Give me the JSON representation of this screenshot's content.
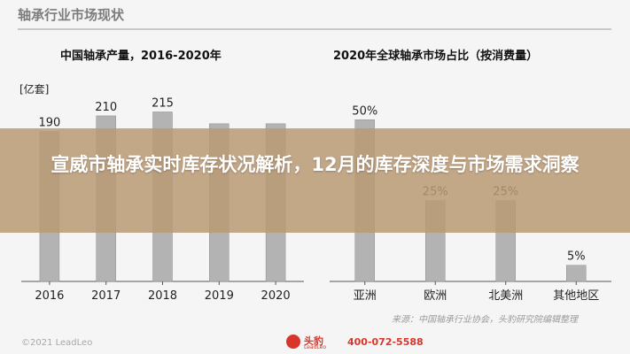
{
  "page_title": "轴承行业市场现状",
  "banner_text": "宣威市轴承实时库存状况解析，12月的库存深度与市场需求洞察",
  "source_note": "来源：中国轴承行业协会，头豹研究院编辑整理",
  "copyright": "©2021 LeadLeo",
  "logo": {
    "name": "头豹",
    "sub": "LeadLeo"
  },
  "phone": "400-072-5588",
  "colors": {
    "bar": "#b3b3b3",
    "bar_stroke": "#8f8f8f",
    "label": "#222222",
    "axis": "#555555",
    "brand": "#d9362b"
  },
  "chart_data": [
    {
      "type": "bar",
      "title": "中国轴承产量，2016-2020年",
      "unit": "[亿套]",
      "categories": [
        "2016",
        "2017",
        "2018",
        "2019",
        "2020"
      ],
      "values": [
        190,
        210,
        215,
        200,
        200
      ],
      "value_labels": [
        "190",
        "210",
        "215",
        "",
        ""
      ],
      "ylim": [
        0,
        220
      ],
      "grid": false
    },
    {
      "type": "bar",
      "title": "2020年全球轴承市场占比（按消费量）",
      "categories": [
        "亚洲",
        "欧洲",
        "北美洲",
        "其他地区"
      ],
      "values": [
        50,
        25,
        25,
        5
      ],
      "value_labels": [
        "50%",
        "25%",
        "25%",
        "5%"
      ],
      "ylim": [
        0,
        52
      ],
      "grid": false
    }
  ]
}
